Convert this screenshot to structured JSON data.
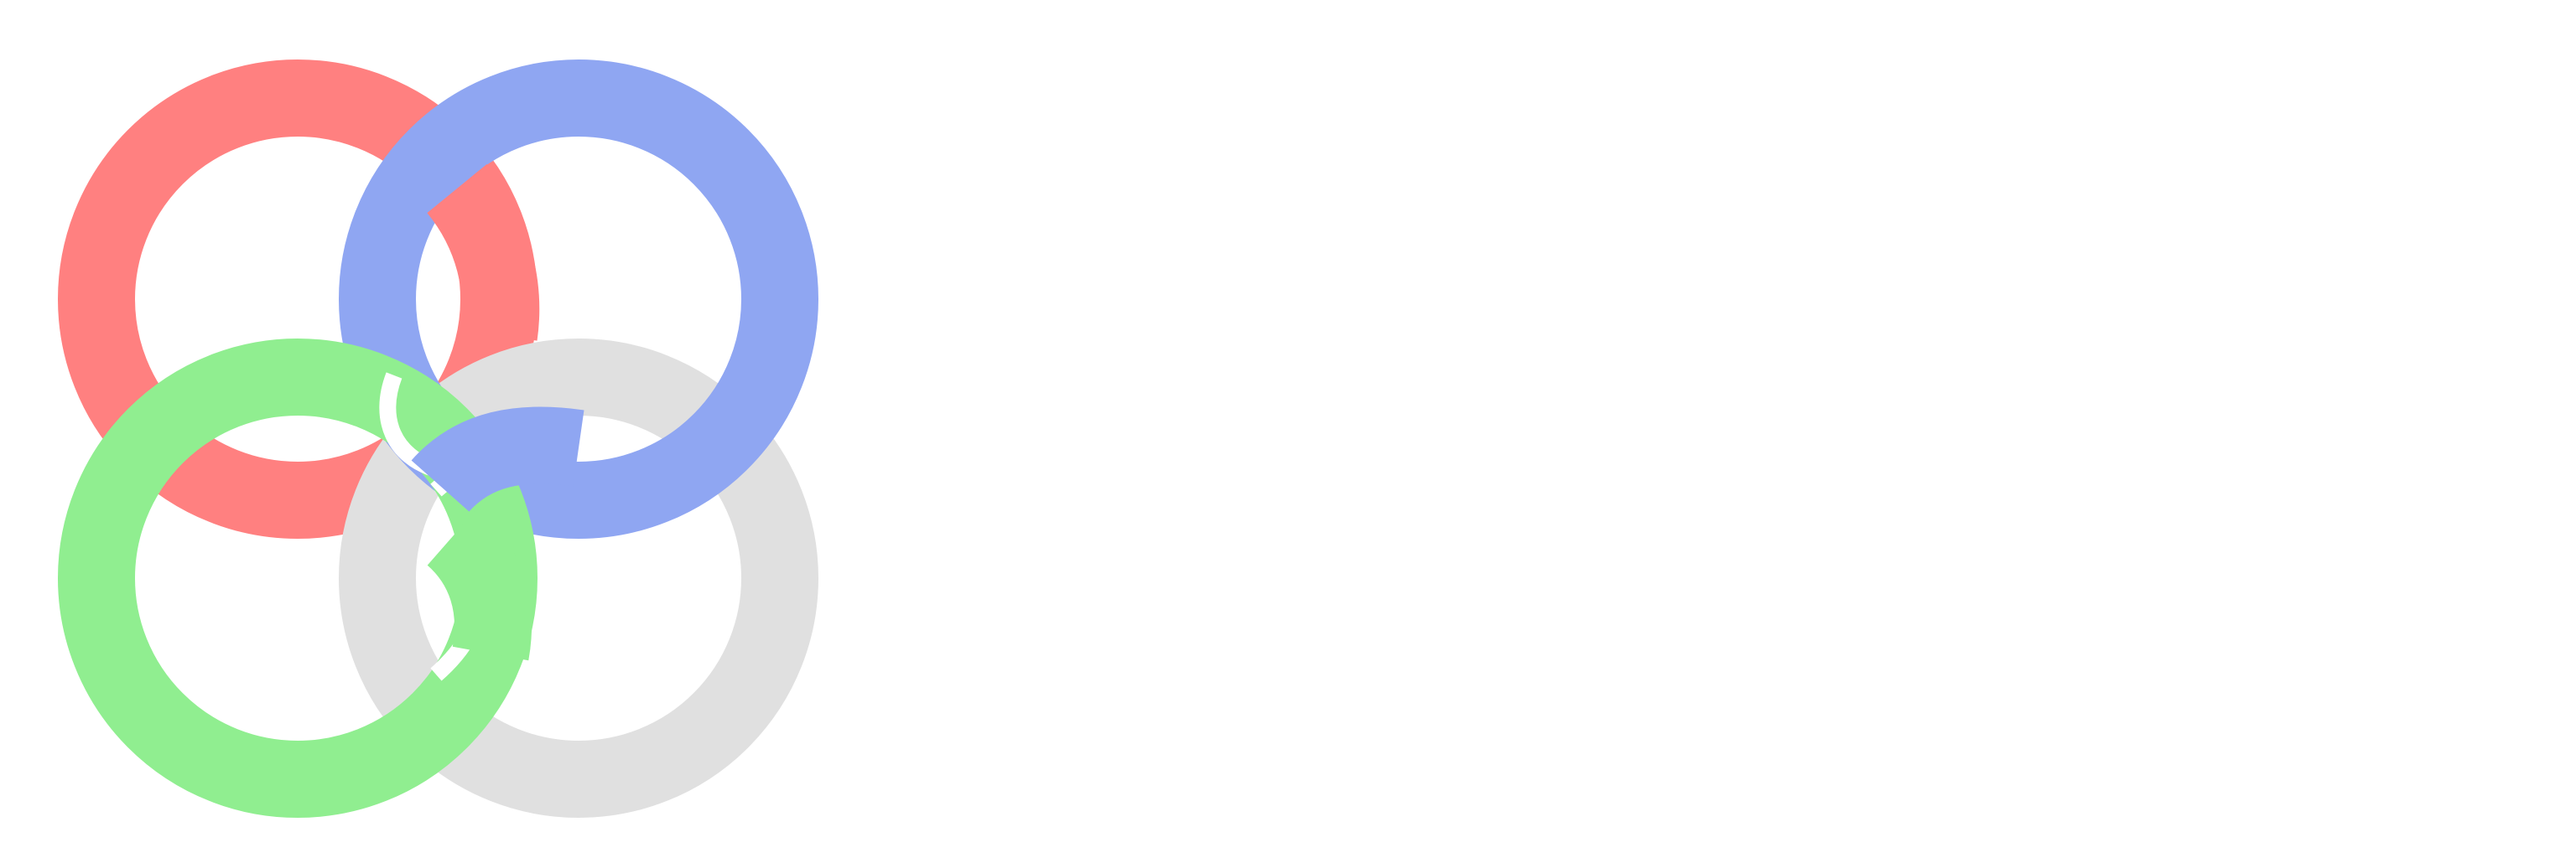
{
  "logo": {
    "icon": "interlocking-rings-logo",
    "colors": {
      "red": "#FF8080",
      "blue": "#8FA6F2",
      "green": "#90EE90",
      "gray": "#E0E0E0",
      "gap": "#FFFFFF"
    }
  }
}
